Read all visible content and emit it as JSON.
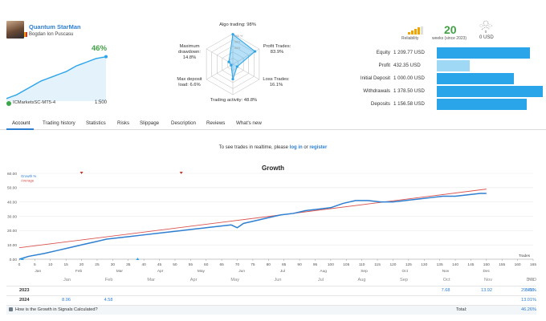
{
  "profile": {
    "name": "Quantum StarMan",
    "author": "Bogdan Ion Puscasu",
    "growth": "46%",
    "broker": "ICMarketsSC-MT5-4",
    "leverage": "1:500",
    "mini_growth_series": [
      1,
      3,
      5,
      8,
      11,
      14,
      17,
      20,
      22,
      24,
      26,
      28,
      30,
      33,
      36,
      38,
      40,
      42,
      44,
      45,
      46
    ]
  },
  "radar": {
    "labels": {
      "algo": "Algo trading: 98%",
      "profit_trades": "Profit Trades:",
      "profit_trades_val": "83.9%",
      "loss_trades": "Loss Trades:",
      "loss_trades_val": "16.1%",
      "activity": "Trading activity: 48.8%",
      "max_deposit_load": "Max deposit",
      "max_deposit_load_2": "load: 6.6%",
      "max_drawdown": "Maximum",
      "max_drawdown_2": "drawdown:",
      "max_drawdown_val": "14.8%"
    },
    "values": [
      0.98,
      0.839,
      0.161,
      0.488,
      0.066,
      0.148
    ],
    "ring_labels": [
      "100 %",
      "80%",
      "60%"
    ]
  },
  "stats": {
    "reliability_label": "Reliability",
    "weeks_value": "20",
    "weeks_label": "weeks (since 2023)",
    "subscribers_value": "0",
    "price": "0 USD"
  },
  "account": [
    {
      "label": "Equity",
      "value": "1 209.77 USD",
      "fraction": 0.88,
      "light": false
    },
    {
      "label": "Profit",
      "value": "432.35 USD",
      "fraction": 0.31,
      "light": true
    },
    {
      "label": "Initial Deposit",
      "value": "1 000.00 USD",
      "fraction": 0.73,
      "light": false
    },
    {
      "label": "Withdrawals",
      "value": "1 378.50 USD",
      "fraction": 1.0,
      "light": false
    },
    {
      "label": "Deposits",
      "value": "1 156.58 USD",
      "fraction": 0.85,
      "light": false
    }
  ],
  "tabs": [
    "Account",
    "Trading history",
    "Statistics",
    "Risks",
    "Slippage",
    "Description",
    "Reviews",
    "What's new"
  ],
  "notice": {
    "prefix": "To see trades in realtime, please ",
    "login": "log in",
    "middle": " or ",
    "register": "register"
  },
  "chart_data": {
    "type": "line",
    "title": "Growth",
    "legend": [
      "Growth %",
      "Average"
    ],
    "xlabel": "Trades",
    "y_ticks": [
      "60.00",
      "50.00",
      "40.00",
      "30.00",
      "20.00",
      "10.00",
      "0.00"
    ],
    "ylim": [
      0,
      60
    ],
    "xlim": [
      0,
      165
    ],
    "x_ticks": [
      "0",
      "5",
      "10",
      "15",
      "20",
      "25",
      "30",
      "35",
      "40",
      "45",
      "50",
      "55",
      "60",
      "65",
      "70",
      "75",
      "80",
      "85",
      "90",
      "95",
      "100",
      "105",
      "110",
      "115",
      "120",
      "125",
      "130",
      "135",
      "140",
      "145",
      "150",
      "155",
      "160",
      "165"
    ],
    "months": [
      "Jan",
      "Feb",
      "Mar",
      "Apr",
      "May",
      "Jun",
      "Jul",
      "Aug",
      "Sep",
      "Oct",
      "Nov",
      "Dec"
    ],
    "series": [
      {
        "name": "Growth %",
        "color": "#2e7fd1",
        "x": [
          0,
          3,
          8,
          12,
          16,
          20,
          24,
          28,
          32,
          36,
          40,
          44,
          48,
          52,
          56,
          60,
          64,
          68,
          70,
          72,
          76,
          80,
          84,
          88,
          92,
          96,
          100,
          104,
          108,
          112,
          116,
          120,
          124,
          128,
          132,
          136,
          140,
          144,
          148,
          150
        ],
        "y": [
          0,
          2,
          4,
          6,
          8,
          10,
          12,
          14,
          15,
          16,
          17,
          18,
          19,
          20,
          21,
          22,
          23,
          24,
          22,
          25,
          27,
          29,
          31,
          32,
          34,
          35,
          36,
          39,
          41,
          41,
          40,
          40,
          41,
          42,
          43,
          44,
          44,
          45,
          46,
          46
        ]
      },
      {
        "name": "Average",
        "color": "#d9534f",
        "x": [
          0,
          150
        ],
        "y": [
          8,
          49
        ]
      }
    ],
    "markers_top": [
      20,
      52
    ],
    "markers_bottom": [
      1,
      38
    ]
  },
  "yearly": {
    "columns": [
      "Jan",
      "Feb",
      "Mar",
      "Apr",
      "May",
      "Jun",
      "Jul",
      "Aug",
      "Sep",
      "Oct",
      "Nov",
      "Dec",
      "YTD"
    ],
    "rows": [
      {
        "year": "2023",
        "values": [
          "",
          "",
          "",
          "",
          "",
          "",
          "",
          "",
          "",
          "7.68",
          "13.92",
          "5.50",
          "29.41%"
        ]
      },
      {
        "year": "2024",
        "values": [
          "8.06",
          "4.58",
          "",
          "",
          "",
          "",
          "",
          "",
          "",
          "",
          "",
          "",
          "13.01%"
        ]
      }
    ],
    "footer_link": "How is the Growth in Signals Calculated?",
    "total_label": "Total:",
    "total_value": "46.26%"
  }
}
